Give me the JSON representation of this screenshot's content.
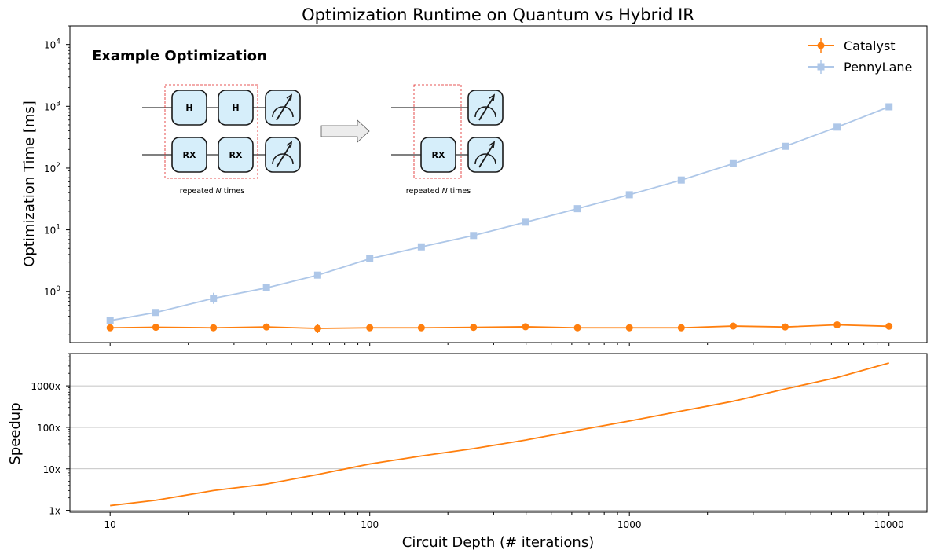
{
  "chart_data": [
    {
      "type": "line",
      "title": "Optimization Runtime on Quantum vs Hybrid IR",
      "xlabel": "",
      "ylabel": "Optimization Time [ms]",
      "xscale": "log",
      "yscale": "log",
      "xlim": [
        7.0,
        14000
      ],
      "ylim": [
        0.15,
        20000
      ],
      "x": [
        10,
        15,
        25,
        40,
        63,
        100,
        158,
        251,
        398,
        631,
        1000,
        1585,
        2512,
        3981,
        6310,
        10000
      ],
      "series": [
        {
          "name": "Catalyst",
          "color": "#ff7f0e",
          "marker": "circle",
          "values": [
            0.26,
            0.265,
            0.26,
            0.268,
            0.254,
            0.26,
            0.26,
            0.264,
            0.27,
            0.26,
            0.26,
            0.26,
            0.277,
            0.268,
            0.29,
            0.275
          ]
        },
        {
          "name": "PennyLane",
          "color": "#aec7e8",
          "marker": "square",
          "values": [
            0.34,
            0.46,
            0.78,
            1.15,
            1.85,
            3.4,
            5.3,
            8.1,
            13.3,
            22,
            37,
            64,
            118,
            225,
            460,
            980
          ]
        }
      ],
      "yticks": [
        {
          "base": "10",
          "exp": "0",
          "value": 1
        },
        {
          "base": "10",
          "exp": "1",
          "value": 10
        },
        {
          "base": "10",
          "exp": "2",
          "value": 100
        },
        {
          "base": "10",
          "exp": "3",
          "value": 1000
        },
        {
          "base": "10",
          "exp": "4",
          "value": 10000
        }
      ],
      "grid": false,
      "legend_position": "top-right"
    },
    {
      "type": "line",
      "title": "",
      "xlabel": "Circuit Depth (# iterations)",
      "ylabel": "Speedup",
      "xscale": "log",
      "yscale": "log",
      "xlim": [
        7.0,
        14000
      ],
      "ylim": [
        0.9,
        6000
      ],
      "x": [
        10,
        15,
        25,
        40,
        63,
        100,
        158,
        251,
        398,
        631,
        1000,
        1585,
        2512,
        3981,
        6310,
        10000
      ],
      "series": [
        {
          "color": "#ff7f0e",
          "values": [
            1.3,
            1.75,
            3.0,
            4.3,
            7.3,
            13.1,
            20.4,
            30.7,
            49.3,
            84.6,
            142,
            246,
            426,
            840,
            1586,
            3564
          ]
        }
      ],
      "xticks": [
        {
          "label": "10",
          "value": 10
        },
        {
          "label": "100",
          "value": 100
        },
        {
          "label": "1000",
          "value": 1000
        },
        {
          "label": "10000",
          "value": 10000
        }
      ],
      "yticks": [
        {
          "label": "1x",
          "value": 1
        },
        {
          "label": "10x",
          "value": 10
        },
        {
          "label": "100x",
          "value": 100
        },
        {
          "label": "1000x",
          "value": 1000
        }
      ],
      "grid": true
    }
  ],
  "inset": {
    "title": "Example Optimization",
    "gate_h": "H",
    "gate_rx": "RX",
    "repeat_prefix": "repeated ",
    "repeat_var": "N",
    "repeat_suffix": " times"
  }
}
